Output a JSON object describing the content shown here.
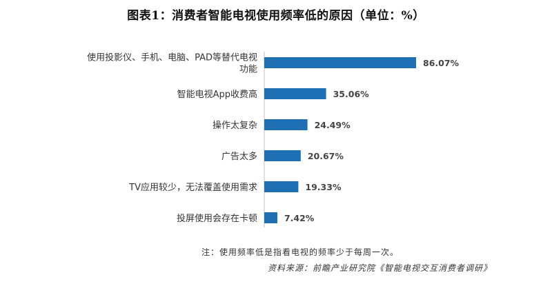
{
  "title": "图表1：消费者智能电视使用频率低的原因（单位：%）",
  "note": "注：使用频率低是指看电视的频率少于每周一次。",
  "source": "资料来源：前瞻产业研究院《智能电视交互消费者调研》",
  "colors": {
    "bar": "#1f6fb5"
  },
  "chart_data": {
    "type": "bar",
    "orientation": "horizontal",
    "categories": [
      [
        "使用投影仪、手机、电脑、PAD等替代电视",
        "功能"
      ],
      [
        "智能电视App收费高"
      ],
      [
        "操作太复杂"
      ],
      [
        "广告太多"
      ],
      [
        "TV应用较少，无法覆盖使用需求"
      ],
      [
        "投屏使用会存在卡顿"
      ]
    ],
    "values": [
      86.07,
      35.06,
      24.49,
      20.67,
      19.33,
      7.42
    ],
    "value_labels": [
      "86.07%",
      "35.06%",
      "24.49%",
      "20.67%",
      "19.33%",
      "7.42%"
    ],
    "xlim": [
      0,
      100
    ],
    "grid": false,
    "legend": "none"
  }
}
